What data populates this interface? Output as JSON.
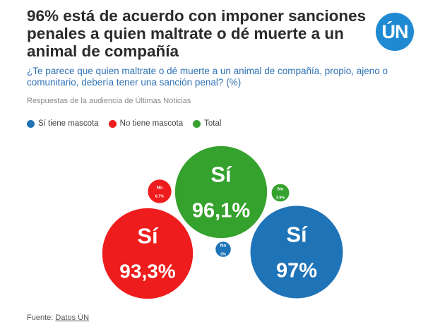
{
  "header": {
    "title": "96% está de acuerdo con imponer sanciones penales a quien maltrate o dé muerte a un animal de compañía",
    "logo_text": "ÚN",
    "subtitle": "¿Te parece que quien maltrate o dé muerte a un animal de compañía, propio, ajeno o comunitario, debería tener una sanción penal? (%)",
    "note": "Respuestas de la audiencia de Últimas Noticias"
  },
  "legend": [
    {
      "label": "Sí tiene mascota",
      "color": "#1f73b7"
    },
    {
      "label": "No tiene mascota",
      "color": "#ee1c1c"
    },
    {
      "label": "Total",
      "color": "#35a22d"
    }
  ],
  "footer": {
    "source_label": "Fuente: ",
    "source_link": "Datos ÚN"
  },
  "chart_data": {
    "type": "bubble",
    "title": "96% está de acuerdo con imponer sanciones penales a quien maltrate o dé muerte a un animal de compañía",
    "series": [
      {
        "name": "Total",
        "color": "#35a22d",
        "values": [
          {
            "category": "Sí",
            "value": 96.1,
            "label": "96,1%"
          },
          {
            "category": "No",
            "value": 3.9,
            "label": "3.9%"
          }
        ]
      },
      {
        "name": "No tiene mascota",
        "color": "#ee1c1c",
        "values": [
          {
            "category": "Sí",
            "value": 93.3,
            "label": "93,3%"
          },
          {
            "category": "No",
            "value": 6.7,
            "label": "6.7%"
          }
        ]
      },
      {
        "name": "Sí tiene mascota",
        "color": "#1f73b7",
        "values": [
          {
            "category": "Sí",
            "value": 97,
            "label": "97%"
          },
          {
            "category": "No",
            "value": 3,
            "label": "3%"
          }
        ]
      }
    ]
  }
}
